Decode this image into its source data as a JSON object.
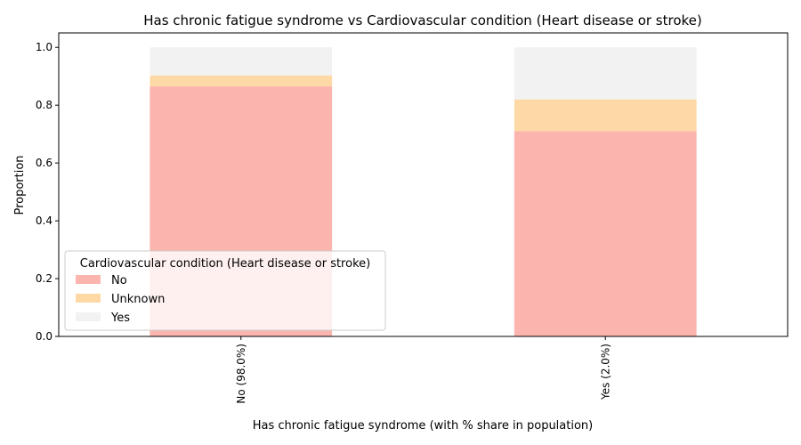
{
  "chart_data": {
    "type": "bar",
    "stacked": true,
    "title": "Has chronic fatigue syndrome vs Cardiovascular condition (Heart disease or stroke)",
    "xlabel": "Has chronic fatigue syndrome (with % share in population)",
    "ylabel": "Proportion",
    "categories": [
      "No (98.0%)",
      "Yes (2.0%)"
    ],
    "ylim": [
      0,
      1.05
    ],
    "yticks": [
      "0.0",
      "0.2",
      "0.4",
      "0.6",
      "0.8",
      "1.0"
    ],
    "series": [
      {
        "name": "No",
        "values": [
          0.865,
          0.71
        ],
        "color": "#fbb4ae"
      },
      {
        "name": "Unknown",
        "values": [
          0.038,
          0.11
        ],
        "color": "#fed9a6"
      },
      {
        "name": "Yes",
        "values": [
          0.097,
          0.18
        ],
        "color": "#f2f2f2"
      }
    ],
    "legend": {
      "title": "Cardiovascular condition (Heart disease or stroke)",
      "placement": "lower-left"
    },
    "grid": false
  }
}
